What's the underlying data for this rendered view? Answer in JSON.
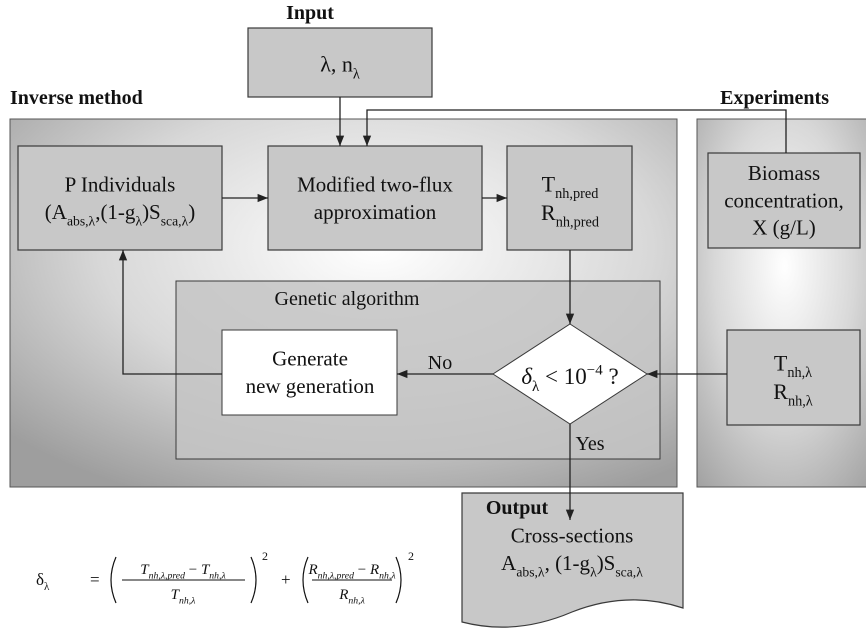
{
  "labels": {
    "input": "Input",
    "inverse": "Inverse method",
    "experiments": "Experiments",
    "genetic": "Genetic algorithm",
    "output": "Output",
    "no": "No",
    "yes": "Yes"
  },
  "boxes": {
    "input": [
      [
        {
          "text": "λ, n"
        },
        {
          "text": "λ",
          "style": "sub"
        }
      ]
    ],
    "individuals": [
      [
        {
          "text": "P Individuals"
        }
      ],
      [
        {
          "text": "(A"
        },
        {
          "text": "abs,λ",
          "style": "sub"
        },
        {
          "text": ",(1-g"
        },
        {
          "text": "λ",
          "style": "sub"
        },
        {
          "text": ")S"
        },
        {
          "text": "sca,λ",
          "style": "sub"
        },
        {
          "text": ")"
        }
      ]
    ],
    "two_flux": [
      [
        {
          "text": "Modified two-flux"
        }
      ],
      [
        {
          "text": "approximation"
        }
      ]
    ],
    "predicted": [
      [
        {
          "text": "T"
        },
        {
          "text": "nh,pred",
          "style": "sub"
        }
      ],
      [
        {
          "text": "R"
        },
        {
          "text": "nh,pred",
          "style": "sub"
        }
      ]
    ],
    "biomass": [
      [
        {
          "text": "Biomass"
        }
      ],
      [
        {
          "text": "concentration,"
        }
      ],
      [
        {
          "text": "X (g/L)"
        }
      ]
    ],
    "generate": [
      [
        {
          "text": "Generate"
        }
      ],
      [
        {
          "text": "new generation"
        }
      ]
    ],
    "decision": [
      [
        {
          "text": "δ",
          "style": "italic"
        },
        {
          "text": "λ",
          "style": "sub"
        },
        {
          "text": " < 10"
        },
        {
          "text": "−4",
          "style": "sup"
        },
        {
          "text": " ?"
        }
      ]
    ],
    "measured": [
      [
        {
          "text": "T"
        },
        {
          "text": "nh,λ",
          "style": "sub"
        }
      ],
      [
        {
          "text": "R"
        },
        {
          "text": "nh,λ",
          "style": "sub"
        }
      ]
    ],
    "output": [
      [
        {
          "text": "Cross-sections"
        }
      ],
      [
        {
          "text": "A"
        },
        {
          "text": "abs,λ",
          "style": "sub"
        },
        {
          "text": ", (1-g"
        },
        {
          "text": "λ",
          "style": "sub"
        },
        {
          "text": ")S"
        },
        {
          "text": "sca,λ",
          "style": "sub"
        }
      ]
    ]
  },
  "formula": {
    "lhs": [
      {
        "text": "δ"
      },
      {
        "text": "λ",
        "style": "sub"
      }
    ],
    "equals": "=",
    "plus": "+",
    "terms": [
      {
        "num": [
          {
            "text": "T",
            "style": "italic"
          },
          {
            "text": "nh,λ,pred",
            "style": "sub italic"
          },
          {
            "text": " − "
          },
          {
            "text": "T",
            "style": "italic"
          },
          {
            "text": "nh,λ",
            "style": "sub italic"
          }
        ],
        "den": [
          {
            "text": "T",
            "style": "italic"
          },
          {
            "text": "nh,λ",
            "style": "sub italic"
          }
        ],
        "power": "2"
      },
      {
        "num": [
          {
            "text": "R",
            "style": "italic"
          },
          {
            "text": "nh,λ,pred",
            "style": "sub italic"
          },
          {
            "text": " − "
          },
          {
            "text": "R",
            "style": "italic"
          },
          {
            "text": "nh,λ",
            "style": "sub italic"
          }
        ],
        "den": [
          {
            "text": "R",
            "style": "italic"
          },
          {
            "text": "nh,λ",
            "style": "sub italic"
          }
        ],
        "power": "2"
      }
    ]
  }
}
